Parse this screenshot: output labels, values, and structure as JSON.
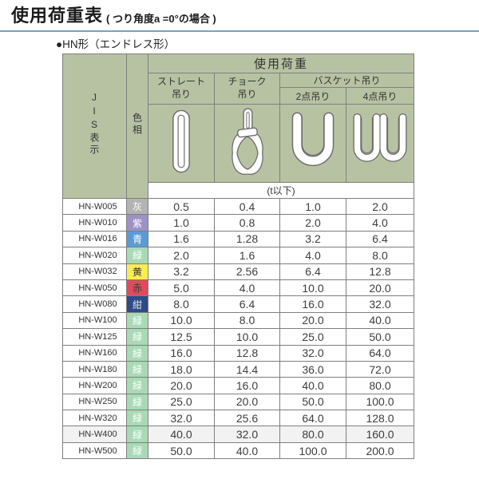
{
  "page": {
    "title": "使用荷重表",
    "title_note": "( つり角度a =0°の場合 )",
    "section": "●HN形（エンドレス形）"
  },
  "colors": {
    "header_bg": "#b7c2a3",
    "border": "#7f7f7f",
    "title_rule": "#76a3c2",
    "highlight_row_bg": "#f2f2f2"
  },
  "table": {
    "corner_header": "JIS表示",
    "color_header": "色相",
    "load_header": "使用荷重",
    "col_straight": "ストレート\n吊り",
    "col_choker": "チョーク\n吊り",
    "col_basket": "バスケット吊り",
    "col_basket_2point": "2点吊り",
    "col_basket_4point": "4点吊り",
    "unit_note": "(t以下)",
    "icons": [
      "straight-sling-icon",
      "choker-sling-icon",
      "basket-2point-sling-icon",
      "basket-4point-sling-icon"
    ],
    "rows": [
      {
        "jis": "HN-W005",
        "color_label": "灰",
        "color_bg": "#b3b3b3",
        "color_text": "#ffffff",
        "values": [
          "0.5",
          "0.4",
          "1.0",
          "2.0"
        ]
      },
      {
        "jis": "HN-W010",
        "color_label": "紫",
        "color_bg": "#9c92c6",
        "color_text": "#ffffff",
        "values": [
          "1.0",
          "0.8",
          "2.0",
          "4.0"
        ]
      },
      {
        "jis": "HN-W016",
        "color_label": "青",
        "color_bg": "#5b9bd5",
        "color_text": "#ffffff",
        "values": [
          "1.6",
          "1.28",
          "3.2",
          "6.4"
        ]
      },
      {
        "jis": "HN-W020",
        "color_label": "緑",
        "color_bg": "#a9dab6",
        "color_text": "#ffffff",
        "values": [
          "2.0",
          "1.6",
          "4.0",
          "8.0"
        ]
      },
      {
        "jis": "HN-W032",
        "color_label": "黄",
        "color_bg": "#f7ee4f",
        "color_text": "#333333",
        "values": [
          "3.2",
          "2.56",
          "6.4",
          "12.8"
        ]
      },
      {
        "jis": "HN-W050",
        "color_label": "赤",
        "color_bg": "#e2495b",
        "color_text": "#3a3a3a",
        "values": [
          "5.0",
          "4.0",
          "10.0",
          "20.0"
        ]
      },
      {
        "jis": "HN-W080",
        "color_label": "紺",
        "color_bg": "#2e4a88",
        "color_text": "#e6e6e6",
        "values": [
          "8.0",
          "6.4",
          "16.0",
          "32.0"
        ]
      },
      {
        "jis": "HN-W100",
        "color_label": "緑",
        "color_bg": "#a9dab6",
        "color_text": "#ffffff",
        "values": [
          "10.0",
          "8.0",
          "20.0",
          "40.0"
        ]
      },
      {
        "jis": "HN-W125",
        "color_label": "緑",
        "color_bg": "#a9dab6",
        "color_text": "#ffffff",
        "values": [
          "12.5",
          "10.0",
          "25.0",
          "50.0"
        ]
      },
      {
        "jis": "HN-W160",
        "color_label": "緑",
        "color_bg": "#a9dab6",
        "color_text": "#ffffff",
        "values": [
          "16.0",
          "12.8",
          "32.0",
          "64.0"
        ]
      },
      {
        "jis": "HN-W180",
        "color_label": "緑",
        "color_bg": "#a9dab6",
        "color_text": "#ffffff",
        "values": [
          "18.0",
          "14.4",
          "36.0",
          "72.0"
        ]
      },
      {
        "jis": "HN-W200",
        "color_label": "緑",
        "color_bg": "#a9dab6",
        "color_text": "#ffffff",
        "values": [
          "20.0",
          "16.0",
          "40.0",
          "80.0"
        ]
      },
      {
        "jis": "HN-W250",
        "color_label": "緑",
        "color_bg": "#a9dab6",
        "color_text": "#ffffff",
        "values": [
          "25.0",
          "20.0",
          "50.0",
          "100.0"
        ]
      },
      {
        "jis": "HN-W320",
        "color_label": "緑",
        "color_bg": "#a9dab6",
        "color_text": "#ffffff",
        "values": [
          "32.0",
          "25.6",
          "64.0",
          "128.0"
        ]
      },
      {
        "jis": "HN-W400",
        "color_label": "緑",
        "color_bg": "#a9dab6",
        "color_text": "#ffffff",
        "highlight": true,
        "values": [
          "40.0",
          "32.0",
          "80.0",
          "160.0"
        ]
      },
      {
        "jis": "HN-W500",
        "color_label": "緑",
        "color_bg": "#a9dab6",
        "color_text": "#ffffff",
        "values": [
          "50.0",
          "40.0",
          "100.0",
          "200.0"
        ]
      }
    ]
  }
}
